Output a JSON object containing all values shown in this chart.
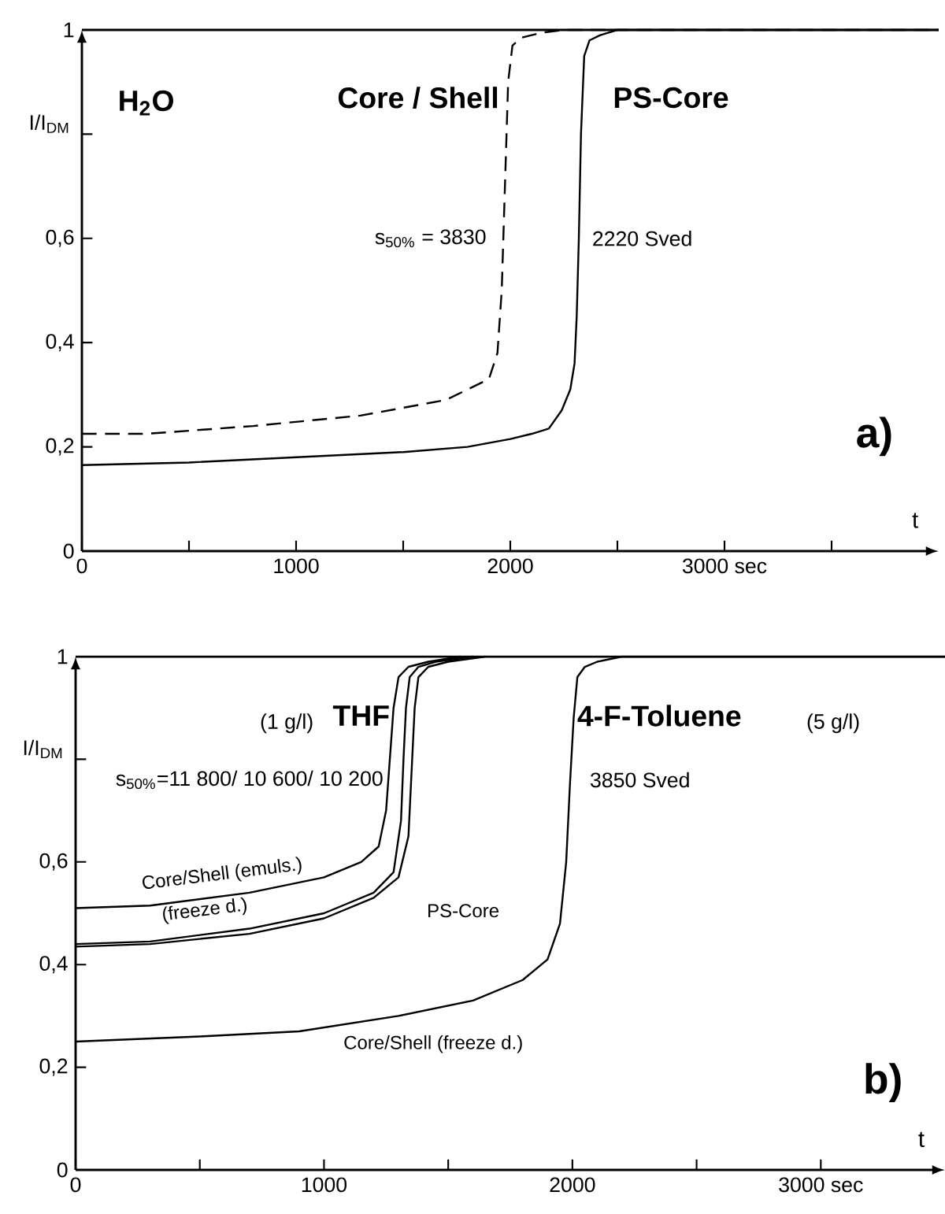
{
  "chart_data": [
    {
      "type": "line",
      "title": "a)",
      "ylabel": "I/I$_{DM}$",
      "xlabel": "t",
      "xlim": [
        0,
        4000
      ],
      "ylim": [
        0,
        1
      ],
      "xticks": [
        0,
        {
          "value": 500,
          "label": null
        },
        1000,
        {
          "value": 1500,
          "label": null
        },
        2000,
        {
          "value": 2500,
          "label": null
        },
        {
          "value": 3000,
          "label": "3000 sec"
        },
        {
          "value": 3500,
          "label": null
        }
      ],
      "yticks": [
        0,
        {
          "value": 0.2,
          "label": "0,2"
        },
        {
          "value": 0.4,
          "label": "0,4"
        },
        {
          "value": 0.6,
          "label": "0,6"
        },
        {
          "value": 0.8,
          "label": null
        },
        1
      ],
      "series": [
        {
          "name": "Core / Shell",
          "color": "#000000",
          "line_style": "dashed",
          "x": [
            0,
            300,
            800,
            1300,
            1700,
            1900,
            1940,
            1960,
            1975,
            1990,
            2010,
            2050,
            2150,
            2250,
            4000
          ],
          "values": [
            0.225,
            0.225,
            0.24,
            0.26,
            0.29,
            0.33,
            0.38,
            0.5,
            0.7,
            0.9,
            0.97,
            0.985,
            0.995,
            1,
            1
          ]
        },
        {
          "name": "PS-Core",
          "color": "#000000",
          "line_style": "solid",
          "x": [
            0,
            500,
            1000,
            1500,
            1800,
            2000,
            2100,
            2180,
            2240,
            2280,
            2300,
            2310,
            2320,
            2330,
            2345,
            2370,
            2420,
            2500,
            4000
          ],
          "values": [
            0.165,
            0.17,
            0.18,
            0.19,
            0.2,
            0.215,
            0.225,
            0.235,
            0.27,
            0.31,
            0.36,
            0.45,
            0.6,
            0.8,
            0.95,
            0.98,
            0.99,
            1,
            1
          ]
        }
      ],
      "annotations": [
        "H$_{2}$O",
        "s$_{50%}$ = 3830",
        "2220 Sved"
      ]
    },
    {
      "type": "line",
      "title": "b)",
      "ylabel": "I/I$_{DM}$",
      "xlabel": "t",
      "xlim": [
        0,
        3500
      ],
      "ylim": [
        0,
        1
      ],
      "xticks": [
        0,
        {
          "value": 500,
          "label": null
        },
        1000,
        {
          "value": 1500,
          "label": null
        },
        2000,
        {
          "value": 2500,
          "label": null
        },
        {
          "value": 3000,
          "label": "3000 sec"
        }
      ],
      "yticks": [
        0,
        {
          "value": 0.2,
          "label": "0,2"
        },
        {
          "value": 0.4,
          "label": "0,4"
        },
        {
          "value": 0.6,
          "label": "0,6"
        },
        {
          "value": 0.8,
          "label": null
        },
        1
      ],
      "series": [
        {
          "name": "Core/Shell (emuls.)",
          "color": "#000000",
          "line_style": "solid",
          "x": [
            0,
            300,
            700,
            1000,
            1150,
            1220,
            1250,
            1265,
            1280,
            1300,
            1340,
            1420,
            1550
          ],
          "values": [
            0.51,
            0.515,
            0.54,
            0.57,
            0.6,
            0.63,
            0.7,
            0.8,
            0.9,
            0.96,
            0.98,
            0.99,
            1
          ]
        },
        {
          "name": "(freeze d.)",
          "color": "#000000",
          "line_style": "solid",
          "x": [
            0,
            300,
            700,
            1000,
            1200,
            1280,
            1310,
            1320,
            1330,
            1345,
            1380,
            1450,
            1600
          ],
          "values": [
            0.44,
            0.445,
            0.47,
            0.5,
            0.54,
            0.58,
            0.68,
            0.8,
            0.9,
            0.96,
            0.98,
            0.99,
            1
          ]
        },
        {
          "name": "PS-Core",
          "color": "#000000",
          "line_style": "solid",
          "x": [
            0,
            300,
            700,
            1000,
            1200,
            1300,
            1340,
            1355,
            1365,
            1380,
            1420,
            1500,
            1650
          ],
          "values": [
            0.435,
            0.44,
            0.46,
            0.49,
            0.53,
            0.57,
            0.65,
            0.8,
            0.9,
            0.96,
            0.98,
            0.99,
            1
          ]
        },
        {
          "name": "Core/Shell (freeze d.)",
          "color": "#000000",
          "line_style": "solid",
          "x": [
            0,
            500,
            900,
            1300,
            1600,
            1800,
            1900,
            1950,
            1975,
            1990,
            2005,
            2020,
            2050,
            2100,
            2200,
            3500
          ],
          "values": [
            0.25,
            0.26,
            0.27,
            0.3,
            0.33,
            0.37,
            0.41,
            0.48,
            0.6,
            0.75,
            0.88,
            0.96,
            0.98,
            0.99,
            1,
            1
          ]
        }
      ],
      "annotations": [
        "(1 g/l)",
        "THF",
        "4-F-Toluene",
        "(5 g/l)",
        "s$_{50%}$=11 800/ 10 600/ 10 200",
        "3850 Sved"
      ]
    }
  ]
}
